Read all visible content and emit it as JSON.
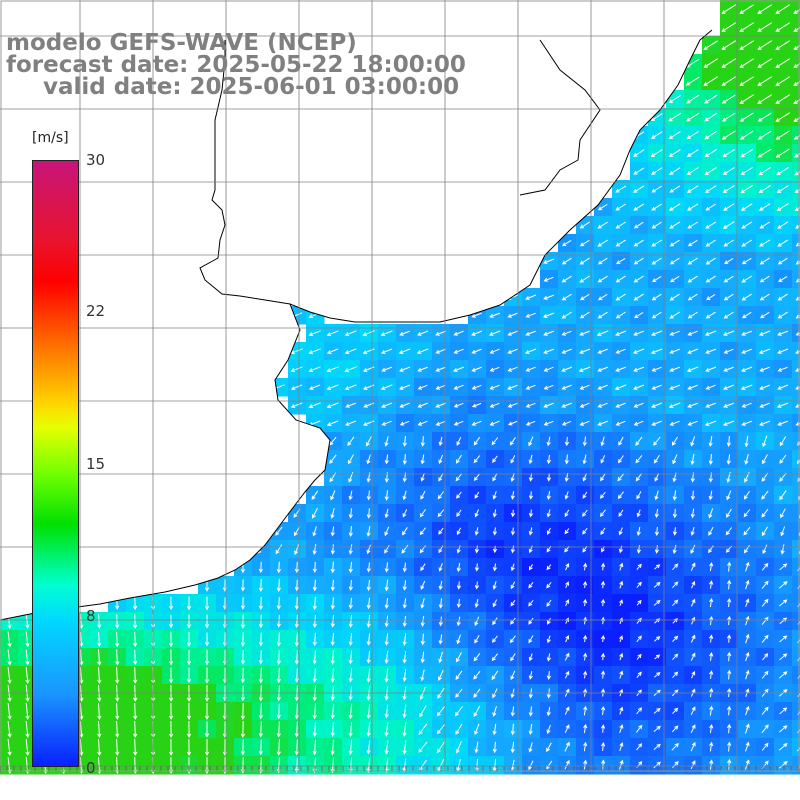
{
  "title": {
    "line1": "modelo GEFS-WAVE (NCEP)",
    "line2": "forecast date: 2025-05-22 18:00:00",
    "line3": "valid date: 2025-06-01 03:00:00"
  },
  "colorbar": {
    "units": "[m/s]",
    "ticks": [
      "30",
      "22",
      "15",
      "8",
      "0"
    ],
    "tick_values": [
      30,
      22,
      15,
      8,
      0
    ],
    "range": [
      0,
      30
    ]
  },
  "colors": {
    "land": "#ffffff",
    "coastline": "#000000",
    "grid": "#808080",
    "arrows": "#ffffff"
  },
  "map": {
    "variable": "wind speed and direction",
    "region": "Rio de la Plata and southern Brazil / Uruguay coast"
  }
}
